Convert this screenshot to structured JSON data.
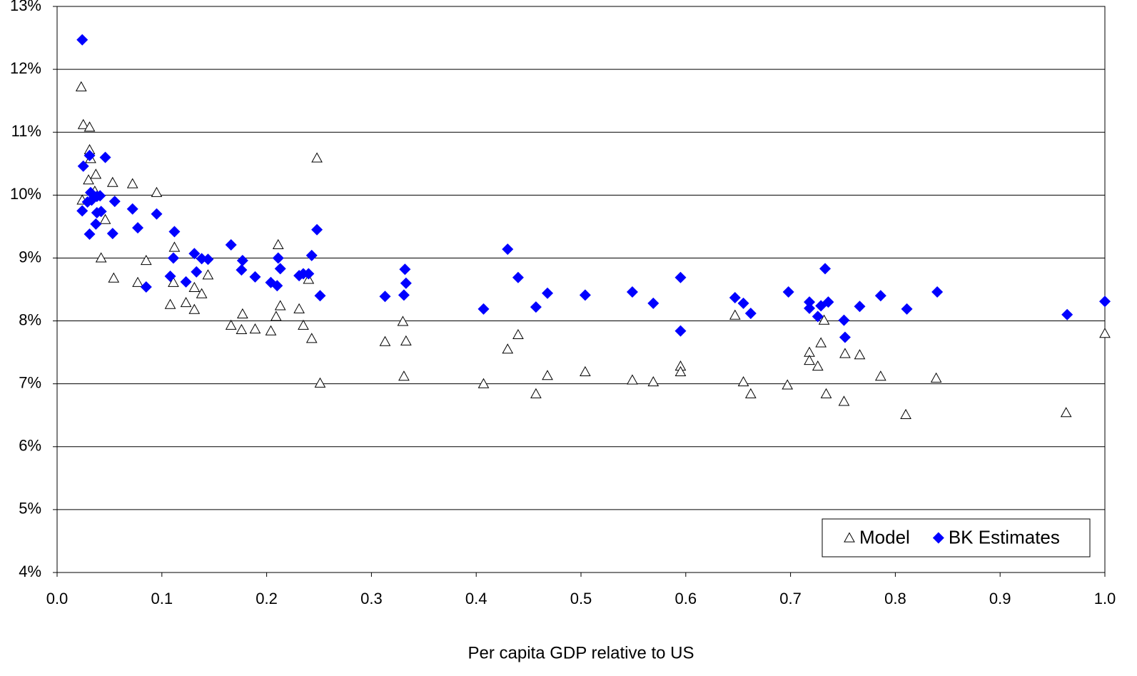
{
  "chart_data": {
    "type": "scatter",
    "x_label": "Per capita GDP relative to US",
    "xlim": [
      0,
      1
    ],
    "xticks": [
      {
        "value": 0,
        "label": "0.0"
      },
      0.1,
      0.2,
      0.3,
      0.4,
      0.5,
      0.6,
      0.7,
      0.8,
      0.9,
      {
        "value": 1,
        "label": "1.0"
      }
    ],
    "ylim": [
      4,
      13
    ],
    "yticks": [
      {
        "value": 4,
        "label": "4%"
      },
      {
        "value": 5,
        "label": "5%"
      },
      {
        "value": 6,
        "label": "6%"
      },
      {
        "value": 7,
        "label": "7%"
      },
      {
        "value": 8,
        "label": "8%"
      },
      {
        "value": 9,
        "label": "9%"
      },
      {
        "value": 10,
        "label": "10%"
      },
      {
        "value": 11,
        "label": "11%"
      },
      {
        "value": 12,
        "label": "12%"
      },
      {
        "value": 13,
        "label": "13%"
      }
    ],
    "grid": true,
    "legend": "lower right",
    "series": [
      {
        "name": "Model",
        "color": "#000000",
        "marker": "triangle",
        "x": [
          0.023,
          0.025,
          0.031,
          0.031,
          0.032,
          0.03,
          0.037,
          0.036,
          0.024,
          0.046,
          0.042,
          0.053,
          0.054,
          0.072,
          0.095,
          0.077,
          0.085,
          0.112,
          0.111,
          0.108,
          0.123,
          0.131,
          0.138,
          0.144,
          0.131,
          0.166,
          0.177,
          0.176,
          0.189,
          0.204,
          0.211,
          0.213,
          0.209,
          0.231,
          0.235,
          0.24,
          0.243,
          0.248,
          0.251,
          0.313,
          0.33,
          0.333,
          0.331,
          0.407,
          0.43,
          0.44,
          0.457,
          0.468,
          0.504,
          0.549,
          0.569,
          0.595,
          0.595,
          0.647,
          0.655,
          0.662,
          0.697,
          0.718,
          0.718,
          0.726,
          0.729,
          0.732,
          0.734,
          0.752,
          0.751,
          0.766,
          0.786,
          0.81,
          0.839,
          0.963,
          1.0
        ],
        "values": [
          11.72,
          11.12,
          11.08,
          10.72,
          10.58,
          10.24,
          10.33,
          10.06,
          9.92,
          9.61,
          9.0,
          10.2,
          8.68,
          10.18,
          10.04,
          8.61,
          8.96,
          9.17,
          8.61,
          8.26,
          8.29,
          8.53,
          8.43,
          8.73,
          8.18,
          7.93,
          8.11,
          7.86,
          7.87,
          7.84,
          9.21,
          8.24,
          8.07,
          8.19,
          7.93,
          8.66,
          7.72,
          10.59,
          7.01,
          7.67,
          7.99,
          7.68,
          7.12,
          7.0,
          7.55,
          7.78,
          6.84,
          7.13,
          7.19,
          7.06,
          7.03,
          7.28,
          7.19,
          8.09,
          7.03,
          6.84,
          6.98,
          7.5,
          7.37,
          7.28,
          7.65,
          8.01,
          6.84,
          7.48,
          6.72,
          7.46,
          7.12,
          6.51,
          7.09,
          6.54,
          7.8
        ]
      },
      {
        "name": "BK Estimates",
        "color": "#0000ff",
        "marker": "diamond",
        "x": [
          0.024,
          0.031,
          0.025,
          0.046,
          0.032,
          0.038,
          0.041,
          0.029,
          0.024,
          0.033,
          0.055,
          0.038,
          0.042,
          0.037,
          0.031,
          0.053,
          0.072,
          0.077,
          0.095,
          0.112,
          0.085,
          0.111,
          0.108,
          0.123,
          0.131,
          0.138,
          0.144,
          0.133,
          0.166,
          0.177,
          0.176,
          0.189,
          0.204,
          0.21,
          0.211,
          0.213,
          0.231,
          0.235,
          0.24,
          0.243,
          0.248,
          0.251,
          0.313,
          0.332,
          0.333,
          0.331,
          0.407,
          0.43,
          0.44,
          0.457,
          0.468,
          0.504,
          0.549,
          0.569,
          0.595,
          0.595,
          0.647,
          0.655,
          0.662,
          0.698,
          0.718,
          0.718,
          0.726,
          0.729,
          0.733,
          0.736,
          0.751,
          0.752,
          0.766,
          0.786,
          0.811,
          0.84,
          0.964,
          1.0
        ],
        "values": [
          12.47,
          10.63,
          10.46,
          10.6,
          10.04,
          9.98,
          9.99,
          9.89,
          9.75,
          9.92,
          9.9,
          9.72,
          9.74,
          9.54,
          9.38,
          9.39,
          9.78,
          9.48,
          9.7,
          9.42,
          8.54,
          9.0,
          8.71,
          8.62,
          9.07,
          8.99,
          8.98,
          8.78,
          9.21,
          8.96,
          8.81,
          8.7,
          8.61,
          8.56,
          9.0,
          8.83,
          8.72,
          8.75,
          8.75,
          9.04,
          9.45,
          8.4,
          8.39,
          8.82,
          8.6,
          8.41,
          8.19,
          9.14,
          8.69,
          8.22,
          8.44,
          8.41,
          8.46,
          8.28,
          7.84,
          8.69,
          8.37,
          8.28,
          8.12,
          8.46,
          8.3,
          8.2,
          8.07,
          8.24,
          8.83,
          8.3,
          8.01,
          7.74,
          8.23,
          8.4,
          8.19,
          8.46,
          8.1,
          8.31
        ]
      }
    ]
  }
}
